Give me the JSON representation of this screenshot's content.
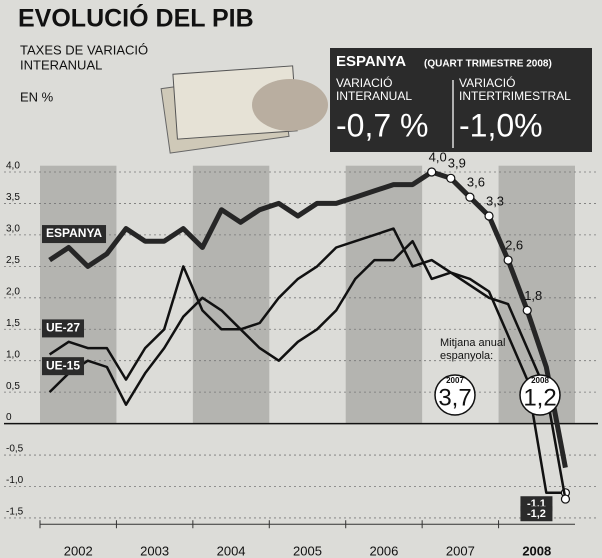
{
  "chart_data": {
    "type": "line",
    "title": "EVOLUCIÓ DEL PIB",
    "subtitle": [
      "TAXES DE VARIACIÓ",
      "INTERANUAL"
    ],
    "unit_label": "EN %",
    "summary": {
      "title": "ESPANYA",
      "period": "(QUART TRIMESTRE 2008)",
      "left_label": [
        "VARIACIÓ",
        "INTERANUAL"
      ],
      "left_value": "-0,7 %",
      "right_label": [
        "VARIACIÓ",
        "INTERTRIMESTRAL"
      ],
      "right_value": "-1,0%"
    },
    "years": [
      "2002",
      "2003",
      "2004",
      "2005",
      "2006",
      "2007",
      "2008"
    ],
    "quarters_per_year": 4,
    "shaded_years": [
      0,
      2,
      4,
      6
    ],
    "series": [
      {
        "name": "ESPANYA",
        "color": "#262626",
        "width": 5,
        "values": [
          2.6,
          2.8,
          2.5,
          2.7,
          3.1,
          2.9,
          2.9,
          3.1,
          2.8,
          3.4,
          3.2,
          3.4,
          3.5,
          3.3,
          3.5,
          3.5,
          3.6,
          3.7,
          3.8,
          3.8,
          4.0,
          3.9,
          3.6,
          3.3,
          2.6,
          1.8,
          0.9,
          -0.7
        ],
        "value_labels": [
          null,
          null,
          null,
          null,
          null,
          null,
          null,
          null,
          null,
          null,
          null,
          null,
          null,
          null,
          null,
          null,
          null,
          null,
          null,
          null,
          "4,0",
          "3,9",
          "3,6",
          "3,3",
          "2,6",
          "1,8",
          null,
          null
        ]
      },
      {
        "name": "UE-27",
        "color": "#111111",
        "width": 2.5,
        "values": [
          1.1,
          1.3,
          1.2,
          1.2,
          0.7,
          1.2,
          1.5,
          2.5,
          1.8,
          1.5,
          1.5,
          1.6,
          2.0,
          2.3,
          2.5,
          2.8,
          2.9,
          3.0,
          3.1,
          2.5,
          2.6,
          2.4,
          2.3,
          2.1,
          1.4,
          0.7,
          -1.1,
          -1.1
        ],
        "value_labels": [
          null,
          null,
          null,
          null,
          null,
          null,
          null,
          null,
          null,
          null,
          null,
          null,
          null,
          null,
          null,
          null,
          null,
          null,
          null,
          null,
          null,
          null,
          null,
          null,
          null,
          null,
          null,
          "-1,1"
        ]
      },
      {
        "name": "UE-15",
        "color": "#111111",
        "width": 2.5,
        "values": [
          0.5,
          0.8,
          1.0,
          0.9,
          0.3,
          0.8,
          1.2,
          1.7,
          2.0,
          1.8,
          1.5,
          1.2,
          1.0,
          1.3,
          1.5,
          1.8,
          2.3,
          2.6,
          2.6,
          2.9,
          2.3,
          2.4,
          2.2,
          2.0,
          1.9,
          1.2,
          0.5,
          -1.2
        ],
        "value_labels": [
          null,
          null,
          null,
          null,
          null,
          null,
          null,
          null,
          null,
          null,
          null,
          null,
          null,
          null,
          null,
          null,
          null,
          null,
          null,
          null,
          null,
          null,
          null,
          null,
          null,
          null,
          null,
          "-1,2"
        ]
      }
    ],
    "annotation": {
      "text": [
        "Mitjana anual",
        "espanyola:"
      ],
      "items": [
        {
          "year": "2007",
          "value": "3,7"
        },
        {
          "year": "2008",
          "value": "1,2"
        }
      ]
    },
    "ylim": [
      -1.6,
      4.4
    ],
    "yticks": [
      {
        "value": 4,
        "label": "4,0"
      },
      {
        "value": 3.5,
        "label": "3,5"
      },
      {
        "value": 3,
        "label": "3,0"
      },
      {
        "value": 2.5,
        "label": "2,5"
      },
      {
        "value": 2,
        "label": "2,0"
      },
      {
        "value": 1.5,
        "label": "1,5"
      },
      {
        "value": 1,
        "label": "1,0"
      },
      {
        "value": 0.5,
        "label": "0,5"
      },
      0,
      {
        "value": -0.5,
        "label": "-0,5"
      },
      {
        "value": -1,
        "label": "-1,0"
      },
      {
        "value": -1.5,
        "label": "-1,5"
      }
    ],
    "grid": true
  }
}
